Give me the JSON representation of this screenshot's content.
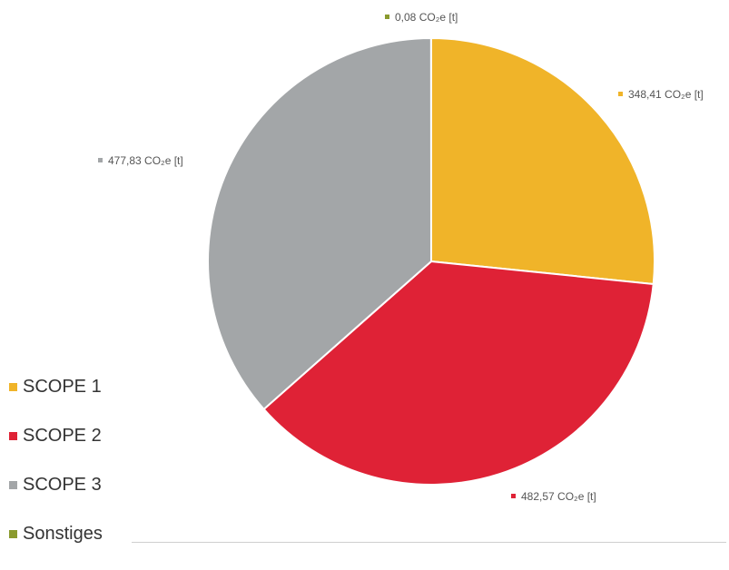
{
  "chart_data": {
    "type": "pie",
    "series": [
      {
        "name": "SCOPE 1",
        "value": 348.41,
        "label": "348,41 CO₂e [t]",
        "color": "#F0B429"
      },
      {
        "name": "SCOPE 2",
        "value": 482.57,
        "label": "482,57 CO₂e [t]",
        "color": "#DF2236"
      },
      {
        "name": "SCOPE 3",
        "value": 477.83,
        "label": "477,83 CO₂e [t]",
        "color": "#A3A6A8"
      },
      {
        "name": "Sonstiges",
        "value": 0.08,
        "label": "0,08 CO₂e [t]",
        "color": "#8A9A2E"
      }
    ],
    "legend_placement": "bottom-left"
  }
}
